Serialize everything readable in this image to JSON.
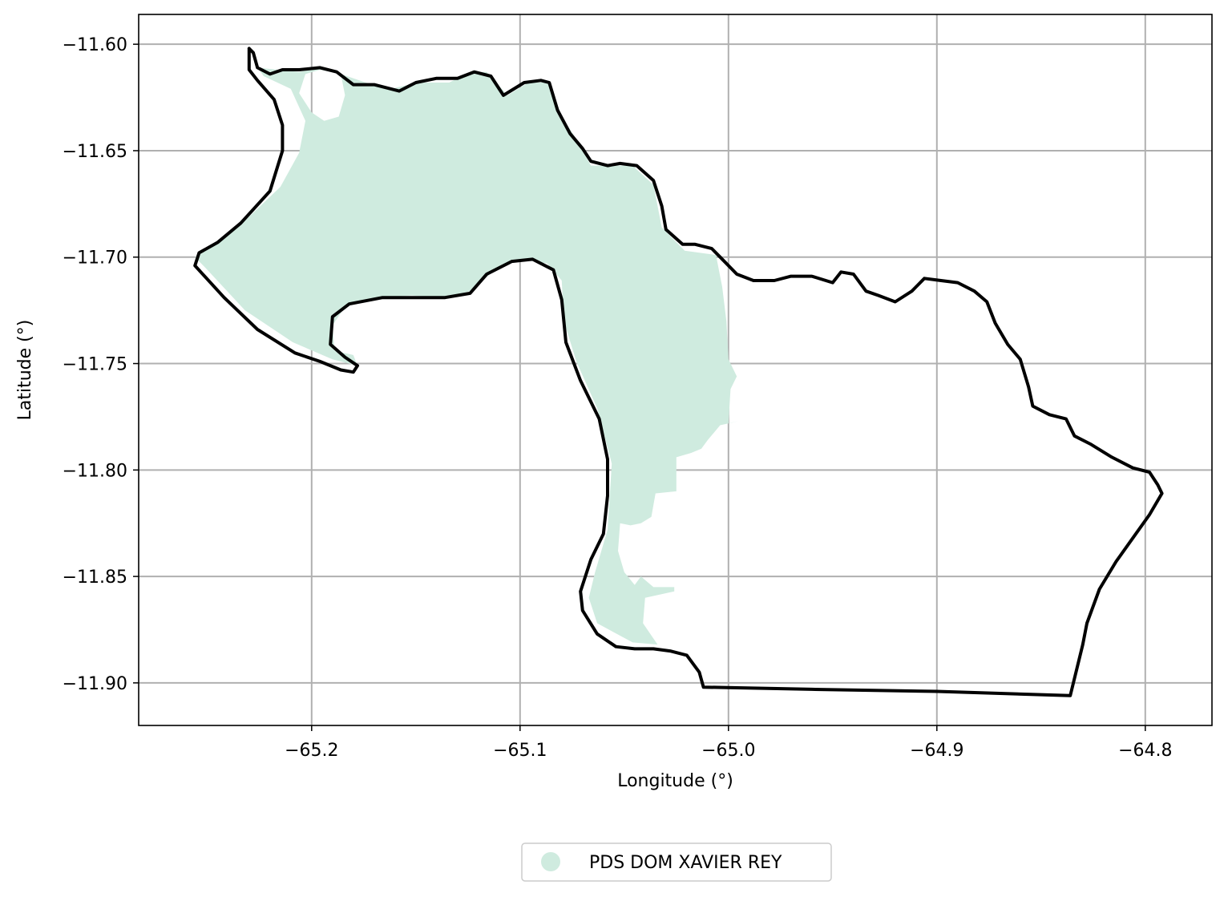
{
  "chart_data": {
    "type": "map",
    "xlabel": "Longitude (°)",
    "ylabel": "Latitude (°)",
    "xlim": [
      -65.283,
      -64.768
    ],
    "ylim": [
      -11.92,
      -11.586
    ],
    "grid": true,
    "x_ticks": [
      {
        "value": -65.2,
        "label": "−65.2"
      },
      {
        "value": -65.1,
        "label": "−65.1"
      },
      {
        "value": -65.0,
        "label": "−65.0"
      },
      {
        "value": -64.9,
        "label": "−64.9"
      },
      {
        "value": -64.8,
        "label": "−64.8"
      }
    ],
    "y_ticks": [
      {
        "value": -11.6,
        "label": "−11.60"
      },
      {
        "value": -11.65,
        "label": "−11.65"
      },
      {
        "value": -11.7,
        "label": "−11.70"
      },
      {
        "value": -11.75,
        "label": "−11.75"
      },
      {
        "value": -11.8,
        "label": "−11.80"
      },
      {
        "value": -11.85,
        "label": "−11.85"
      },
      {
        "value": -11.9,
        "label": "−11.90"
      }
    ],
    "legend": {
      "placement": "bottom-center",
      "entries": [
        {
          "label": "PDS DOM XAVIER REY",
          "color": "#cfebdf",
          "marker": "circle"
        }
      ]
    },
    "layers": [
      {
        "name": "PDS DOM XAVIER REY",
        "kind": "polygon-fill",
        "color": "#cfebdf",
        "coordinates": [
          [
            -65.226,
            -11.611
          ],
          [
            -65.206,
            -11.613
          ],
          [
            -65.196,
            -11.611
          ],
          [
            -65.186,
            -11.614
          ],
          [
            -65.174,
            -11.618
          ],
          [
            -65.162,
            -11.621
          ],
          [
            -65.149,
            -11.618
          ],
          [
            -65.134,
            -11.618
          ],
          [
            -65.124,
            -11.613
          ],
          [
            -65.116,
            -11.613
          ],
          [
            -65.106,
            -11.624
          ],
          [
            -65.096,
            -11.618
          ],
          [
            -65.086,
            -11.618
          ],
          [
            -65.08,
            -11.634
          ],
          [
            -65.074,
            -11.643
          ],
          [
            -65.066,
            -11.657
          ],
          [
            -65.058,
            -11.657
          ],
          [
            -65.046,
            -11.657
          ],
          [
            -65.036,
            -11.666
          ],
          [
            -65.032,
            -11.686
          ],
          [
            -65.021,
            -11.697
          ],
          [
            -65.006,
            -11.699
          ],
          [
            -65.003,
            -11.714
          ],
          [
            -65.001,
            -11.73
          ],
          [
            -65.0,
            -11.748
          ],
          [
            -64.996,
            -11.756
          ],
          [
            -64.999,
            -11.762
          ],
          [
            -65.0,
            -11.778
          ],
          [
            -64.995,
            -11.777
          ],
          [
            -65.004,
            -11.779
          ],
          [
            -65.01,
            -11.786
          ],
          [
            -65.013,
            -11.79
          ],
          [
            -65.018,
            -11.792
          ],
          [
            -65.025,
            -11.794
          ],
          [
            -65.025,
            -11.81
          ],
          [
            -65.035,
            -11.811
          ],
          [
            -65.037,
            -11.822
          ],
          [
            -65.042,
            -11.825
          ],
          [
            -65.047,
            -11.826
          ],
          [
            -65.052,
            -11.825
          ],
          [
            -65.053,
            -11.838
          ],
          [
            -65.05,
            -11.848
          ],
          [
            -65.045,
            -11.854
          ],
          [
            -65.042,
            -11.85
          ],
          [
            -65.036,
            -11.855
          ],
          [
            -65.026,
            -11.855
          ],
          [
            -65.026,
            -11.857
          ],
          [
            -65.04,
            -11.86
          ],
          [
            -65.041,
            -11.872
          ],
          [
            -65.034,
            -11.882
          ],
          [
            -65.046,
            -11.881
          ],
          [
            -65.063,
            -11.872
          ],
          [
            -65.067,
            -11.86
          ],
          [
            -65.064,
            -11.848
          ],
          [
            -65.058,
            -11.828
          ],
          [
            -65.056,
            -11.797
          ],
          [
            -65.063,
            -11.771
          ],
          [
            -65.073,
            -11.749
          ],
          [
            -65.079,
            -11.73
          ],
          [
            -65.08,
            -11.711
          ],
          [
            -65.087,
            -11.703
          ],
          [
            -65.1,
            -11.701
          ],
          [
            -65.112,
            -11.706
          ],
          [
            -65.124,
            -11.716
          ],
          [
            -65.136,
            -11.719
          ],
          [
            -65.152,
            -11.718
          ],
          [
            -65.168,
            -11.719
          ],
          [
            -65.183,
            -11.722
          ],
          [
            -65.19,
            -11.732
          ],
          [
            -65.189,
            -11.744
          ],
          [
            -65.18,
            -11.746
          ],
          [
            -65.178,
            -11.751
          ],
          [
            -65.19,
            -11.748
          ],
          [
            -65.209,
            -11.74
          ],
          [
            -65.232,
            -11.725
          ],
          [
            -65.251,
            -11.705
          ],
          [
            -65.256,
            -11.7
          ],
          [
            -65.25,
            -11.696
          ],
          [
            -65.23,
            -11.681
          ],
          [
            -65.215,
            -11.667
          ],
          [
            -65.206,
            -11.651
          ],
          [
            -65.203,
            -11.636
          ],
          [
            -65.21,
            -11.621
          ],
          [
            -65.223,
            -11.615
          ]
        ],
        "holes": [
          [
            [
              -65.196,
              -11.612
            ],
            [
              -65.186,
              -11.614
            ],
            [
              -65.184,
              -11.624
            ],
            [
              -65.187,
              -11.634
            ],
            [
              -65.194,
              -11.636
            ],
            [
              -65.2,
              -11.632
            ],
            [
              -65.206,
              -11.623
            ],
            [
              -65.203,
              -11.614
            ]
          ]
        ]
      },
      {
        "name": "boundary",
        "kind": "outline",
        "color": "#000000",
        "coordinates": [
          [
            -65.23,
            -11.602
          ],
          [
            -65.228,
            -11.604
          ],
          [
            -65.226,
            -11.611
          ],
          [
            -65.22,
            -11.614
          ],
          [
            -65.214,
            -11.612
          ],
          [
            -65.206,
            -11.612
          ],
          [
            -65.196,
            -11.611
          ],
          [
            -65.188,
            -11.613
          ],
          [
            -65.18,
            -11.619
          ],
          [
            -65.17,
            -11.619
          ],
          [
            -65.158,
            -11.622
          ],
          [
            -65.15,
            -11.618
          ],
          [
            -65.14,
            -11.616
          ],
          [
            -65.13,
            -11.616
          ],
          [
            -65.122,
            -11.613
          ],
          [
            -65.114,
            -11.615
          ],
          [
            -65.108,
            -11.624
          ],
          [
            -65.098,
            -11.618
          ],
          [
            -65.09,
            -11.617
          ],
          [
            -65.086,
            -11.618
          ],
          [
            -65.082,
            -11.631
          ],
          [
            -65.076,
            -11.642
          ],
          [
            -65.07,
            -11.649
          ],
          [
            -65.066,
            -11.655
          ],
          [
            -65.058,
            -11.657
          ],
          [
            -65.052,
            -11.656
          ],
          [
            -65.044,
            -11.657
          ],
          [
            -65.036,
            -11.664
          ],
          [
            -65.032,
            -11.676
          ],
          [
            -65.03,
            -11.687
          ],
          [
            -65.022,
            -11.694
          ],
          [
            -65.016,
            -11.694
          ],
          [
            -65.008,
            -11.696
          ],
          [
            -65.004,
            -11.7
          ],
          [
            -64.996,
            -11.708
          ],
          [
            -64.988,
            -11.711
          ],
          [
            -64.978,
            -11.711
          ],
          [
            -64.97,
            -11.709
          ],
          [
            -64.96,
            -11.709
          ],
          [
            -64.95,
            -11.712
          ],
          [
            -64.946,
            -11.707
          ],
          [
            -64.94,
            -11.708
          ],
          [
            -64.934,
            -11.716
          ],
          [
            -64.928,
            -11.718
          ],
          [
            -64.92,
            -11.721
          ],
          [
            -64.912,
            -11.716
          ],
          [
            -64.906,
            -11.71
          ],
          [
            -64.898,
            -11.711
          ],
          [
            -64.89,
            -11.712
          ],
          [
            -64.882,
            -11.716
          ],
          [
            -64.876,
            -11.721
          ],
          [
            -64.872,
            -11.731
          ],
          [
            -64.866,
            -11.741
          ],
          [
            -64.86,
            -11.748
          ],
          [
            -64.856,
            -11.761
          ],
          [
            -64.854,
            -11.77
          ],
          [
            -64.846,
            -11.774
          ],
          [
            -64.838,
            -11.776
          ],
          [
            -64.834,
            -11.784
          ],
          [
            -64.826,
            -11.788
          ],
          [
            -64.816,
            -11.794
          ],
          [
            -64.806,
            -11.799
          ],
          [
            -64.798,
            -11.801
          ],
          [
            -64.794,
            -11.807
          ],
          [
            -64.792,
            -11.811
          ],
          [
            -64.798,
            -11.821
          ],
          [
            -64.806,
            -11.832
          ],
          [
            -64.814,
            -11.843
          ],
          [
            -64.822,
            -11.856
          ],
          [
            -64.828,
            -11.872
          ],
          [
            -64.83,
            -11.882
          ],
          [
            -64.836,
            -11.906
          ],
          [
            -64.9,
            -11.904
          ],
          [
            -64.96,
            -11.903
          ],
          [
            -65.012,
            -11.902
          ],
          [
            -65.014,
            -11.895
          ],
          [
            -65.02,
            -11.887
          ],
          [
            -65.028,
            -11.885
          ],
          [
            -65.036,
            -11.884
          ],
          [
            -65.045,
            -11.884
          ],
          [
            -65.054,
            -11.883
          ],
          [
            -65.063,
            -11.877
          ],
          [
            -65.07,
            -11.866
          ],
          [
            -65.071,
            -11.857
          ],
          [
            -65.066,
            -11.842
          ],
          [
            -65.06,
            -11.83
          ],
          [
            -65.058,
            -11.812
          ],
          [
            -65.058,
            -11.795
          ],
          [
            -65.062,
            -11.776
          ],
          [
            -65.071,
            -11.758
          ],
          [
            -65.078,
            -11.74
          ],
          [
            -65.08,
            -11.72
          ],
          [
            -65.084,
            -11.706
          ],
          [
            -65.094,
            -11.701
          ],
          [
            -65.104,
            -11.702
          ],
          [
            -65.116,
            -11.708
          ],
          [
            -65.124,
            -11.717
          ],
          [
            -65.136,
            -11.719
          ],
          [
            -65.15,
            -11.719
          ],
          [
            -65.166,
            -11.719
          ],
          [
            -65.182,
            -11.722
          ],
          [
            -65.19,
            -11.728
          ],
          [
            -65.191,
            -11.741
          ],
          [
            -65.184,
            -11.747
          ],
          [
            -65.178,
            -11.751
          ],
          [
            -65.18,
            -11.754
          ],
          [
            -65.186,
            -11.753
          ],
          [
            -65.196,
            -11.749
          ],
          [
            -65.208,
            -11.745
          ],
          [
            -65.226,
            -11.734
          ],
          [
            -65.242,
            -11.719
          ],
          [
            -65.256,
            -11.704
          ],
          [
            -65.254,
            -11.698
          ],
          [
            -65.245,
            -11.693
          ],
          [
            -65.234,
            -11.684
          ],
          [
            -65.22,
            -11.669
          ],
          [
            -65.214,
            -11.65
          ],
          [
            -65.214,
            -11.638
          ],
          [
            -65.218,
            -11.626
          ],
          [
            -65.226,
            -11.617
          ],
          [
            -65.23,
            -11.612
          ],
          [
            -65.23,
            -11.602
          ]
        ]
      }
    ]
  }
}
